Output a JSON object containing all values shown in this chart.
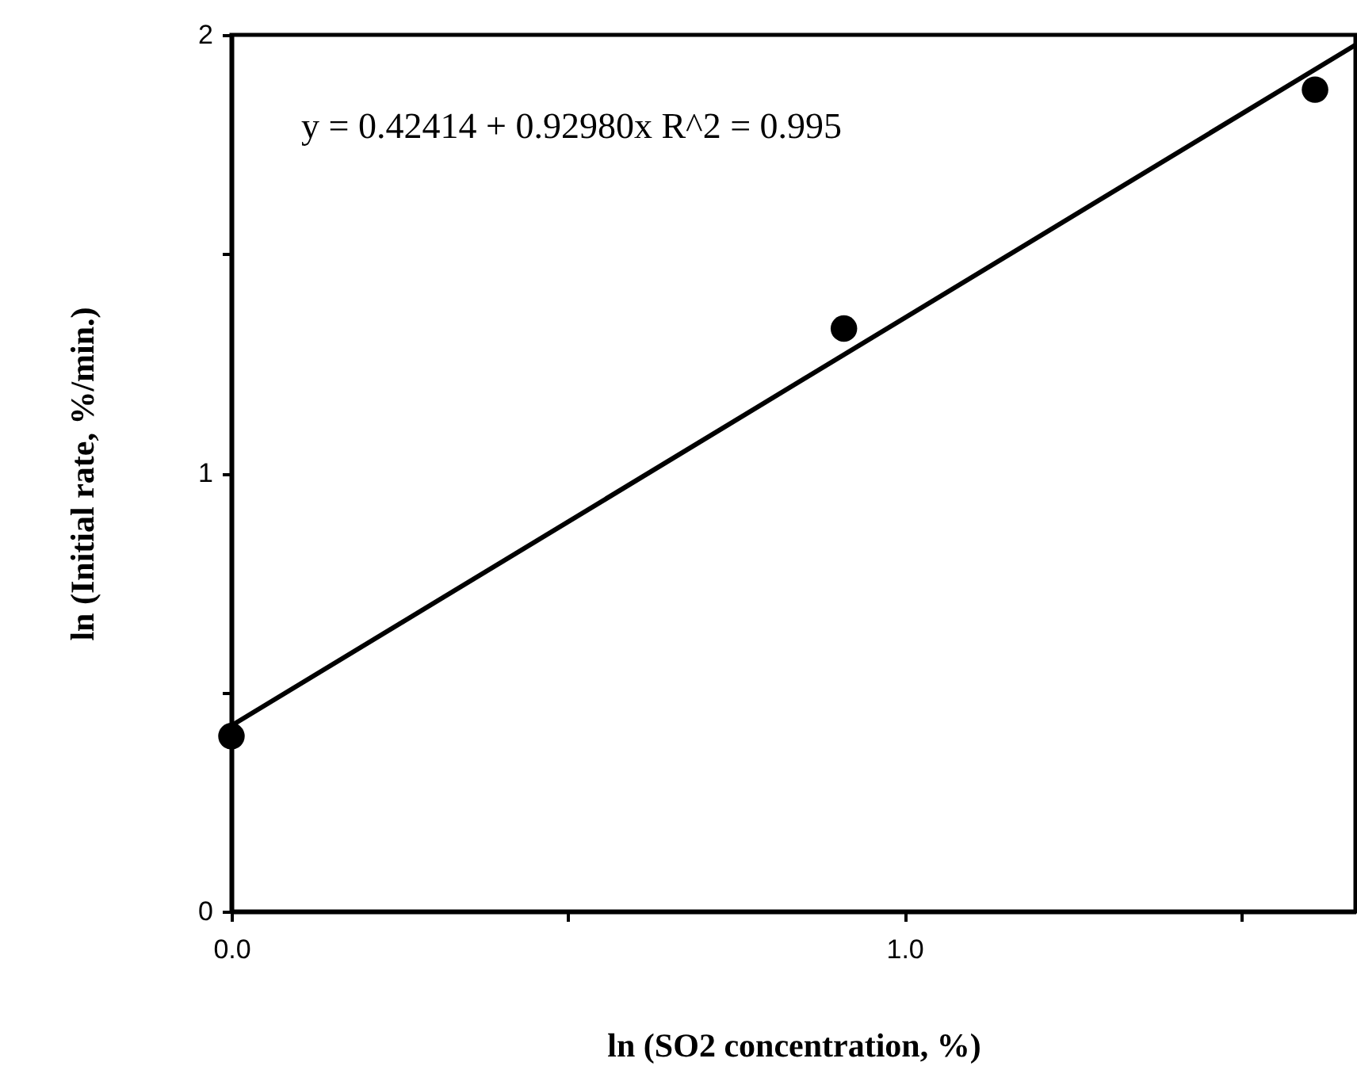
{
  "chart_data": {
    "type": "scatter",
    "xlabel": "ln (SO2 concentration, %)",
    "ylabel": "ln (Initial rate, %/min.)",
    "annotations": [
      "y = 0.42414 + 0.92980x   R^2 = 0.995"
    ],
    "x": [
      0,
      0.91,
      1.61
    ],
    "series": [
      {
        "color": "#000000",
        "marker": "circle",
        "values": [
          0.4,
          1.33,
          1.875
        ]
      },
      {
        "type": "line",
        "color": "#000000",
        "line_style": "solid",
        "x": [
          0,
          1.67
        ],
        "values": [
          0.424,
          1.977
        ]
      }
    ],
    "xlim": [
      0,
      1.67
    ],
    "ylim": [
      0,
      2
    ],
    "xticks": [
      {
        "value": 0,
        "label": "0.0"
      },
      {
        "value": 0.5,
        "label": null
      },
      {
        "value": 1,
        "label": "1.0"
      },
      {
        "value": 1.5,
        "label": null
      }
    ],
    "yticks": [
      0,
      {
        "value": 0.5,
        "label": null
      },
      1,
      {
        "value": 1.5,
        "label": null
      },
      2
    ]
  }
}
